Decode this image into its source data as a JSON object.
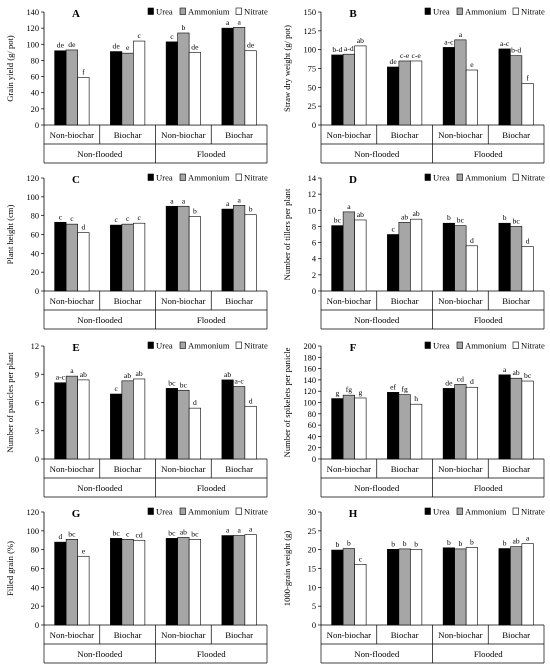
{
  "colors": {
    "urea": "#000000",
    "ammonium": "#a6a6a6",
    "nitrate": "#ffffff",
    "stroke": "#000000"
  },
  "legend_labels": [
    "Urea",
    "Ammonium",
    "Nitrate"
  ],
  "chart_data": [
    {
      "panel": "A",
      "type": "bar",
      "ylabel": "Grain yield (g/ pot)",
      "ylim": [
        0,
        140
      ],
      "ystep": 20,
      "legend_position": "top-right",
      "groups": [
        "Non-flooded",
        "Flooded"
      ],
      "categories": [
        "Non-biochar",
        "Biochar",
        "Non-biochar",
        "Biochar"
      ],
      "series": [
        {
          "name": "Urea",
          "values": [
            92,
            91,
            103,
            120
          ],
          "labels": [
            "de",
            "de",
            "c",
            "a"
          ]
        },
        {
          "name": "Ammonium",
          "values": [
            93,
            89,
            114,
            121
          ],
          "labels": [
            "de",
            "e",
            "b",
            "a"
          ]
        },
        {
          "name": "Nitrate",
          "values": [
            59,
            104,
            90,
            92
          ],
          "labels": [
            "f",
            "c",
            "de",
            "de"
          ]
        }
      ]
    },
    {
      "panel": "B",
      "type": "bar",
      "ylabel": "Straw dry weight (g/ pot)",
      "ylim": [
        0,
        150
      ],
      "ystep": 25,
      "legend_position": "top-right",
      "groups": [
        "Non-flooded",
        "Flooded"
      ],
      "categories": [
        "Non-biochar",
        "Biochar",
        "Non-biochar",
        "Biochar"
      ],
      "series": [
        {
          "name": "Urea",
          "values": [
            93,
            77,
            103,
            101
          ],
          "labels": [
            "b-d",
            "de",
            "a-c",
            "a-c"
          ]
        },
        {
          "name": "Ammonium",
          "values": [
            94,
            85,
            113,
            92
          ],
          "labels": [
            "a-d",
            "c-e",
            "a",
            "b-d"
          ]
        },
        {
          "name": "Nitrate",
          "values": [
            105,
            85,
            73,
            55
          ],
          "labels": [
            "ab",
            "c-e",
            "e",
            "f"
          ]
        }
      ]
    },
    {
      "panel": "C",
      "type": "bar",
      "ylabel": "Plant height (cm)",
      "ylim": [
        0,
        120
      ],
      "ystep": 20,
      "legend_position": "top-right",
      "groups": [
        "Non-flooded",
        "Flooded"
      ],
      "categories": [
        "Non-biochar",
        "Biochar",
        "Non-biochar",
        "Biochar"
      ],
      "series": [
        {
          "name": "Urea",
          "values": [
            73,
            70,
            90,
            87
          ],
          "labels": [
            "c",
            "c",
            "a",
            "a"
          ]
        },
        {
          "name": "Ammonium",
          "values": [
            71,
            71,
            90,
            91
          ],
          "labels": [
            "c",
            "c",
            "a",
            "a"
          ]
        },
        {
          "name": "Nitrate",
          "values": [
            62,
            72,
            79,
            81
          ],
          "labels": [
            "d",
            "c",
            "b",
            "b"
          ]
        }
      ]
    },
    {
      "panel": "D",
      "type": "bar",
      "ylabel": "Number of tillers per plant",
      "ylim": [
        0,
        14
      ],
      "ystep": 2,
      "legend_position": "top-right",
      "groups": [
        "Non-flooded",
        "Flooded"
      ],
      "categories": [
        "Non-biochar",
        "Biochar",
        "Non-biochar",
        "Biochar"
      ],
      "series": [
        {
          "name": "Urea",
          "values": [
            8.1,
            7.0,
            8.4,
            8.4
          ],
          "labels": [
            "bc",
            "c",
            "b",
            "b"
          ]
        },
        {
          "name": "Ammonium",
          "values": [
            9.8,
            8.5,
            8.1,
            8.0
          ],
          "labels": [
            "a",
            "ab",
            "bc",
            "bc"
          ]
        },
        {
          "name": "Nitrate",
          "values": [
            8.8,
            8.9,
            5.6,
            5.5
          ],
          "labels": [
            "ab",
            "ab",
            "d",
            "d"
          ]
        }
      ]
    },
    {
      "panel": "E",
      "type": "bar",
      "ylabel": "Number of panicles per plant",
      "ylim": [
        0,
        12
      ],
      "ystep": 3,
      "legend_position": "top-right",
      "groups": [
        "Non-flooded",
        "Flooded"
      ],
      "categories": [
        "Non-biochar",
        "Biochar",
        "Non-biochar",
        "Biochar"
      ],
      "series": [
        {
          "name": "Urea",
          "values": [
            8.1,
            6.9,
            7.5,
            8.4
          ],
          "labels": [
            "a-c",
            "c",
            "bc",
            "ab"
          ]
        },
        {
          "name": "Ammonium",
          "values": [
            8.8,
            8.3,
            7.3,
            7.7
          ],
          "labels": [
            "a",
            "ab",
            "bc",
            "a-c"
          ]
        },
        {
          "name": "Nitrate",
          "values": [
            8.4,
            8.5,
            5.4,
            5.6
          ],
          "labels": [
            "ab",
            "ab",
            "d",
            "d"
          ]
        }
      ]
    },
    {
      "panel": "F",
      "type": "bar",
      "ylabel": "Number of spikelets per panicle",
      "ylim": [
        0,
        200
      ],
      "ystep": 20,
      "legend_position": "top-right",
      "groups": [
        "Non-flooded",
        "Flooded"
      ],
      "categories": [
        "Non-biochar",
        "Biochar",
        "Non-biochar",
        "Biochar"
      ],
      "series": [
        {
          "name": "Urea",
          "values": [
            107,
            118,
            125,
            149
          ],
          "labels": [
            "g",
            "ef",
            "de",
            "a"
          ]
        },
        {
          "name": "Ammonium",
          "values": [
            113,
            114,
            132,
            143
          ],
          "labels": [
            "fg",
            "fg",
            "cd",
            "ab"
          ]
        },
        {
          "name": "Nitrate",
          "values": [
            108,
            97,
            127,
            138
          ],
          "labels": [
            "g",
            "h",
            "d",
            "bc"
          ]
        }
      ]
    },
    {
      "panel": "G",
      "type": "bar",
      "ylabel": "Filled grain (%)",
      "ylim": [
        0,
        120
      ],
      "ystep": 20,
      "legend_position": "top-right",
      "groups": [
        "Non-flooded",
        "Flooded"
      ],
      "categories": [
        "Non-biochar",
        "Biochar",
        "Non-biochar",
        "Biochar"
      ],
      "series": [
        {
          "name": "Urea",
          "values": [
            88,
            92,
            92,
            95
          ],
          "labels": [
            "d",
            "bc",
            "bc",
            "a"
          ]
        },
        {
          "name": "Ammonium",
          "values": [
            91,
            91,
            93,
            95
          ],
          "labels": [
            "bc",
            "c",
            "ab",
            "a"
          ]
        },
        {
          "name": "Nitrate",
          "values": [
            73,
            90,
            91,
            96
          ],
          "labels": [
            "e",
            "cd",
            "bc",
            "a"
          ]
        }
      ]
    },
    {
      "panel": "H",
      "type": "bar",
      "ylabel": "1000-grain weight (g)",
      "ylim": [
        0,
        30
      ],
      "ystep": 5,
      "legend_position": "top-right",
      "groups": [
        "Non-flooded",
        "Flooded"
      ],
      "categories": [
        "Non-biochar",
        "Biochar",
        "Non-biochar",
        "Biochar"
      ],
      "series": [
        {
          "name": "Urea",
          "values": [
            19.9,
            20.1,
            20.5,
            20.3
          ],
          "labels": [
            "b",
            "b",
            "b",
            "b"
          ]
        },
        {
          "name": "Ammonium",
          "values": [
            20.3,
            20.2,
            20.2,
            20.8
          ],
          "labels": [
            "b",
            "b",
            "b",
            "ab"
          ]
        },
        {
          "name": "Nitrate",
          "values": [
            16.1,
            20.1,
            20.6,
            21.6
          ],
          "labels": [
            "c",
            "b",
            "b",
            "a"
          ]
        }
      ]
    }
  ]
}
